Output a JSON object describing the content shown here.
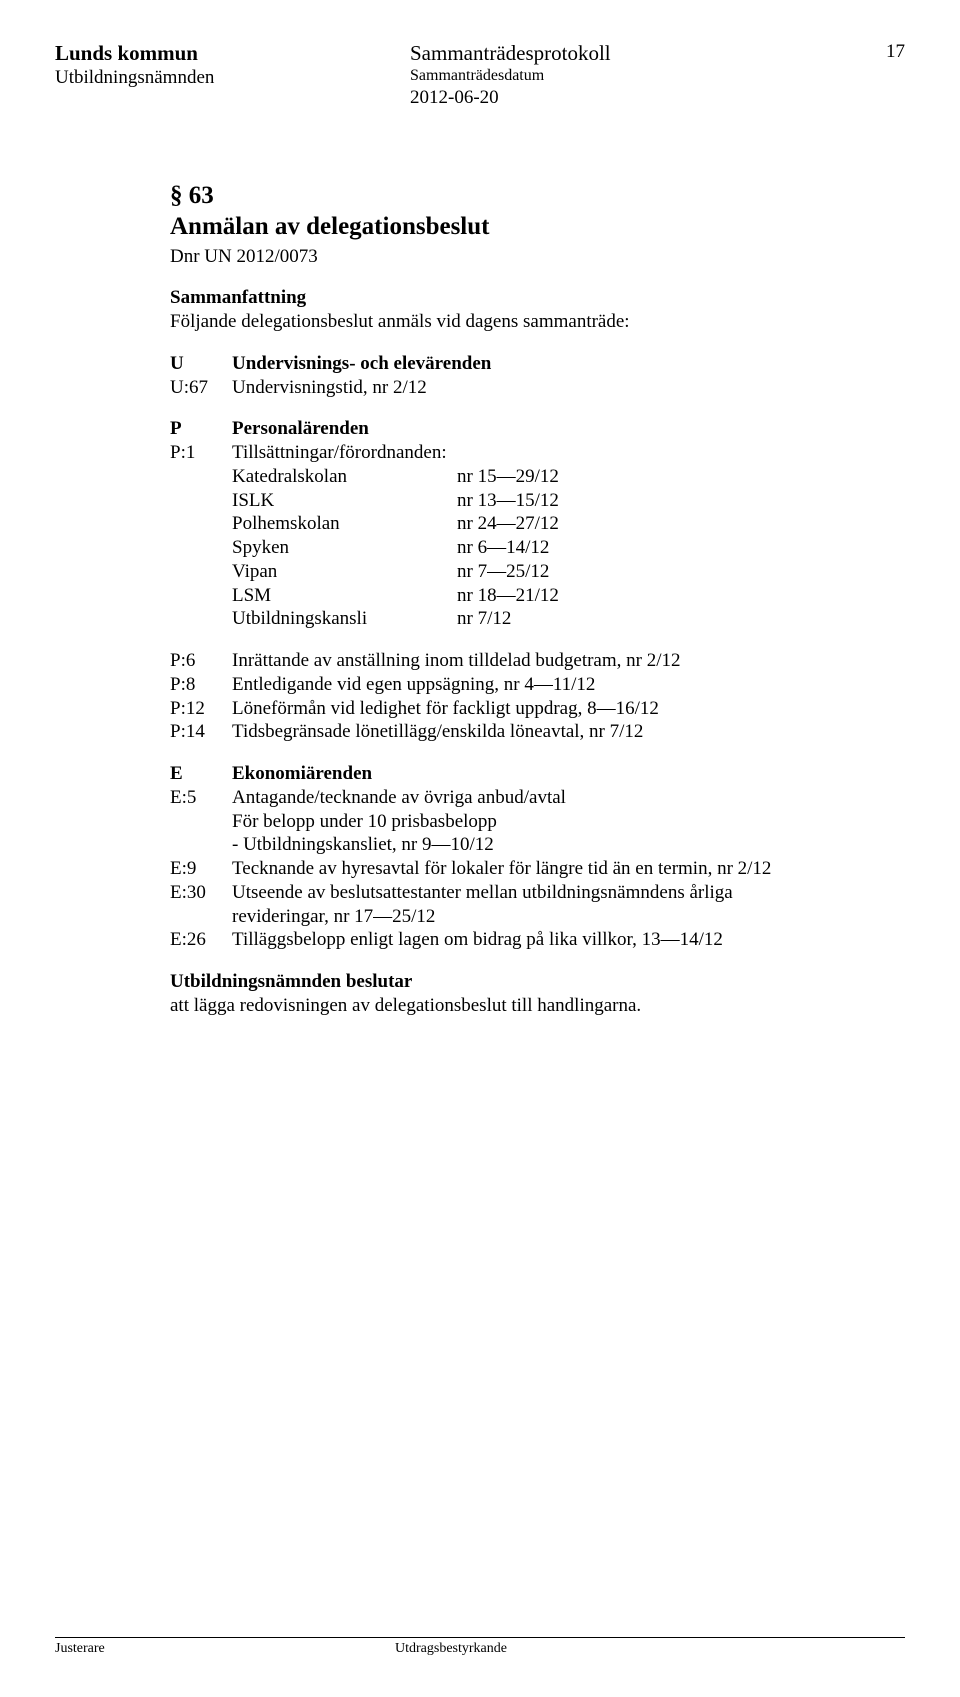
{
  "header": {
    "org": "Lunds kommun",
    "board": "Utbildningsnämnden",
    "proto": "Sammanträdesprotokoll",
    "proto_sublabel": "Sammanträdesdatum",
    "date": "2012-06-20",
    "page_no": "17"
  },
  "section": {
    "num": "§ 63",
    "title": "Anmälan av delegationsbeslut",
    "dnr": "Dnr UN 2012/0073"
  },
  "summary": {
    "heading": "Sammanfattning",
    "text": "Följande delegationsbeslut anmäls vid dagens sammanträde:"
  },
  "u_block": {
    "rows": [
      {
        "key": "U",
        "val": "Undervisnings- och elevärenden",
        "bold": true
      },
      {
        "key": "U:67",
        "val": "Undervisningstid, nr 2/12",
        "bold": false
      }
    ]
  },
  "p_header": {
    "rows": [
      {
        "key": "P",
        "val": "Personalärenden",
        "bold": true
      },
      {
        "key": "P:1",
        "val": "Tillsättningar/förordnanden:",
        "bold": false
      }
    ]
  },
  "schools": [
    {
      "name": "Katedralskolan",
      "val": "nr 15—29/12"
    },
    {
      "name": "ISLK",
      "val": "nr 13—15/12"
    },
    {
      "name": "Polhemskolan",
      "val": "nr 24—27/12"
    },
    {
      "name": "Spyken",
      "val": "nr 6—14/12"
    },
    {
      "name": "Vipan",
      "val": "nr 7—25/12"
    },
    {
      "name": "LSM",
      "val": "nr 18—21/12"
    },
    {
      "name": "Utbildningskansli",
      "val": "nr 7/12"
    }
  ],
  "p_items": [
    {
      "key": "P:6",
      "val": "Inrättande av anställning inom tilldelad budgetram, nr 2/12"
    },
    {
      "key": "P:8",
      "val": "Entledigande vid egen uppsägning, nr 4—11/12"
    },
    {
      "key": "P:12",
      "val": "Löneförmån vid ledighet för fackligt uppdrag, 8—16/12"
    },
    {
      "key": "P:14",
      "val": "Tidsbegränsade lönetillägg/enskilda löneavtal, nr 7/12"
    }
  ],
  "e_header": {
    "key": "E",
    "val": "Ekonomiärenden"
  },
  "e_items": [
    {
      "key": "E:5",
      "lines": [
        "Antagande/tecknande av övriga anbud/avtal",
        "För belopp under 10 prisbasbelopp",
        "- Utbildningskansliet, nr 9—10/12"
      ]
    },
    {
      "key": "E:9",
      "lines": [
        "Tecknande av hyresavtal för lokaler för längre tid än en termin, nr 2/12"
      ]
    },
    {
      "key": "E:30",
      "lines": [
        "Utseende av beslutsattestanter mellan utbildningsnämndens årliga",
        "revideringar, nr 17—25/12"
      ]
    },
    {
      "key": "E:26",
      "lines": [
        "Tilläggsbelopp enligt lagen om bidrag på lika villkor, 13—14/12"
      ]
    }
  ],
  "decision": {
    "heading": "Utbildningsnämnden beslutar",
    "text": "att lägga redovisningen av delegationsbeslut till handlingarna."
  },
  "footer": {
    "left": "Justerare",
    "right": "Utdragsbestyrkande"
  }
}
